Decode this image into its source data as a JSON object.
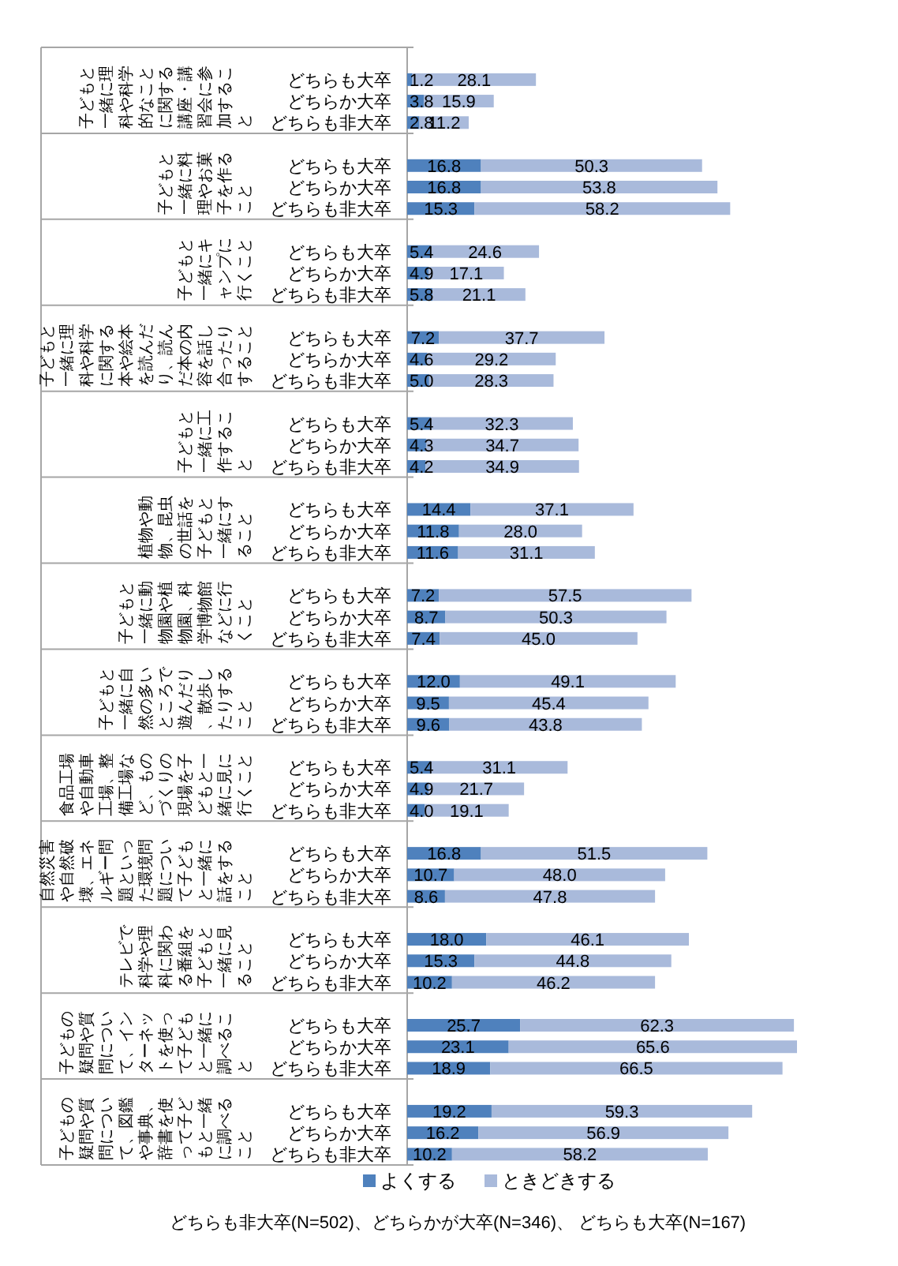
{
  "chart_data": {
    "type": "bar",
    "orientation": "horizontal",
    "stacked": true,
    "legend": "bottom",
    "categories": [
      null,
      "どちらも大卒",
      "どちらか大卒",
      "どちらも非大卒",
      null,
      "どちらも大卒",
      "どちらか大卒",
      "どちらも非大卒",
      null,
      "どちらも大卒",
      "どちらか大卒",
      "どちらも非大卒",
      null,
      "どちらも大卒",
      "どちらか大卒",
      "どちらも非大卒",
      null,
      "どちらも大卒",
      "どちらか大卒",
      "どちらも非大卒",
      null,
      "どちらも大卒",
      "どちらか大卒",
      "どちらも非大卒",
      null,
      "どちらも大卒",
      "どちらか大卒",
      "どちらも非大卒",
      null,
      "どちらも大卒",
      "どちらか大卒",
      "どちらも非大卒",
      null,
      "どちらも大卒",
      "どちらか大卒",
      "どちらも非大卒",
      null,
      "どちらも大卒",
      "どちらか大卒",
      "どちらも非大卒",
      null,
      "どちらも大卒",
      "どちらか大卒",
      "どちらも非大卒",
      null,
      "どちらも大卒",
      "どちらか大卒",
      "どちらも非大卒",
      null,
      "どちらも大卒",
      "どちらか大卒",
      "どちらも非大卒"
    ],
    "series": [
      {
        "name": "よくする",
        "color": "#4f81bd",
        "values": [
          null,
          1.2,
          3.8,
          2.8,
          null,
          16.8,
          16.8,
          15.3,
          null,
          5.4,
          4.9,
          5.8,
          null,
          7.2,
          4.6,
          5.0,
          null,
          5.4,
          4.3,
          4.2,
          null,
          14.4,
          11.8,
          11.6,
          null,
          7.2,
          8.7,
          7.4,
          null,
          12.0,
          9.5,
          9.6,
          null,
          5.4,
          4.9,
          4.0,
          null,
          16.8,
          10.7,
          8.6,
          null,
          18.0,
          15.3,
          10.2,
          null,
          25.7,
          23.1,
          18.9,
          null,
          19.2,
          16.2,
          10.2
        ],
        "value_labels": [
          null,
          "1.2",
          "3.8",
          "2.8",
          null,
          "16.8",
          "16.8",
          "15.3",
          null,
          "5.4",
          "4.9",
          "5.8",
          null,
          "7.2",
          "4.6",
          "5.0",
          null,
          "5.4",
          "4.3",
          "4.2",
          null,
          "14.4",
          "11.8",
          "11.6",
          null,
          "7.2",
          "8.7",
          "7.4",
          null,
          "12.0",
          "9.5",
          "9.6",
          null,
          "5.4",
          "4.9",
          "4.0",
          null,
          "16.8",
          "10.7",
          "8.6",
          null,
          "18.0",
          "15.3",
          "10.2",
          null,
          "25.7",
          "23.1",
          "18.9",
          null,
          "19.2",
          "16.2",
          "10.2"
        ]
      },
      {
        "name": "ときどきする",
        "color": "#a9badb",
        "values": [
          null,
          28.1,
          15.9,
          11.2,
          null,
          50.3,
          53.8,
          58.2,
          null,
          24.6,
          17.1,
          21.1,
          null,
          37.7,
          29.2,
          28.3,
          null,
          32.3,
          34.7,
          34.9,
          null,
          37.1,
          28.0,
          31.1,
          null,
          57.5,
          50.3,
          45.0,
          null,
          49.1,
          45.4,
          43.8,
          null,
          31.1,
          21.7,
          19.1,
          null,
          51.5,
          48.0,
          47.8,
          null,
          46.1,
          44.8,
          46.2,
          null,
          62.3,
          65.6,
          66.5,
          null,
          59.3,
          56.9,
          58.2
        ],
        "value_labels": [
          null,
          "28.1",
          "15.9",
          "11.2",
          null,
          "50.3",
          "53.8",
          "58.2",
          null,
          "24.6",
          "17.1",
          "21.1",
          null,
          "37.7",
          "29.2",
          "28.3",
          null,
          "32.3",
          "34.7",
          "34.9",
          null,
          "37.1",
          "28.0",
          "31.1",
          null,
          "57.5",
          "50.3",
          "45.0",
          null,
          "49.1",
          "45.4",
          "43.8",
          null,
          "31.1",
          "21.7",
          "19.1",
          null,
          "51.5",
          "48.0",
          "47.8",
          null,
          "46.1",
          "44.8",
          "46.2",
          null,
          "62.3",
          "65.6",
          "66.5",
          null,
          "59.3",
          "56.9",
          "58.2"
        ]
      }
    ],
    "annotations": [
      "子どもと一緒に理科や科学的なことに関する講座・講習会に参加すること",
      "子どもと一緒に料理やお菓子を作ること",
      "子どもと一緒にキャンプに行くこと",
      "子どもと一緒に理科や科学に関する本や絵本を読んだり、読んだ本の内容を話し合ったりすること",
      "子どもと一緒に工作すること",
      "植物や動物、昆虫の世話を子どもと一緒にすること",
      "子どもと一緒に動物園や植物園、科学博物館などに行くこと",
      "子どもと一緒に自然の多いところで遊んだり、散歩したりすること",
      "食品工場や自動車工場、整備工場など、ものづくりの現場を子どもと一緒に見に行くこと",
      "自然災害や自然破壊、エネルギー問題といった環境問題について子どもと一緒に話をすること",
      "テレビで科学や理科に関わる番組を子どもと一緒に見ること",
      "子どもの疑問や質問について、インターネットを使って子どもと一緒に調べること",
      "子どもの疑問や質問について、図鑑や事典、辞書を使って子どもと一緒に調べること",
      "どちらも非大卒(N=502)、どちらかが大卒(N=346)、 どちらも大卒(N=167)"
    ]
  }
}
